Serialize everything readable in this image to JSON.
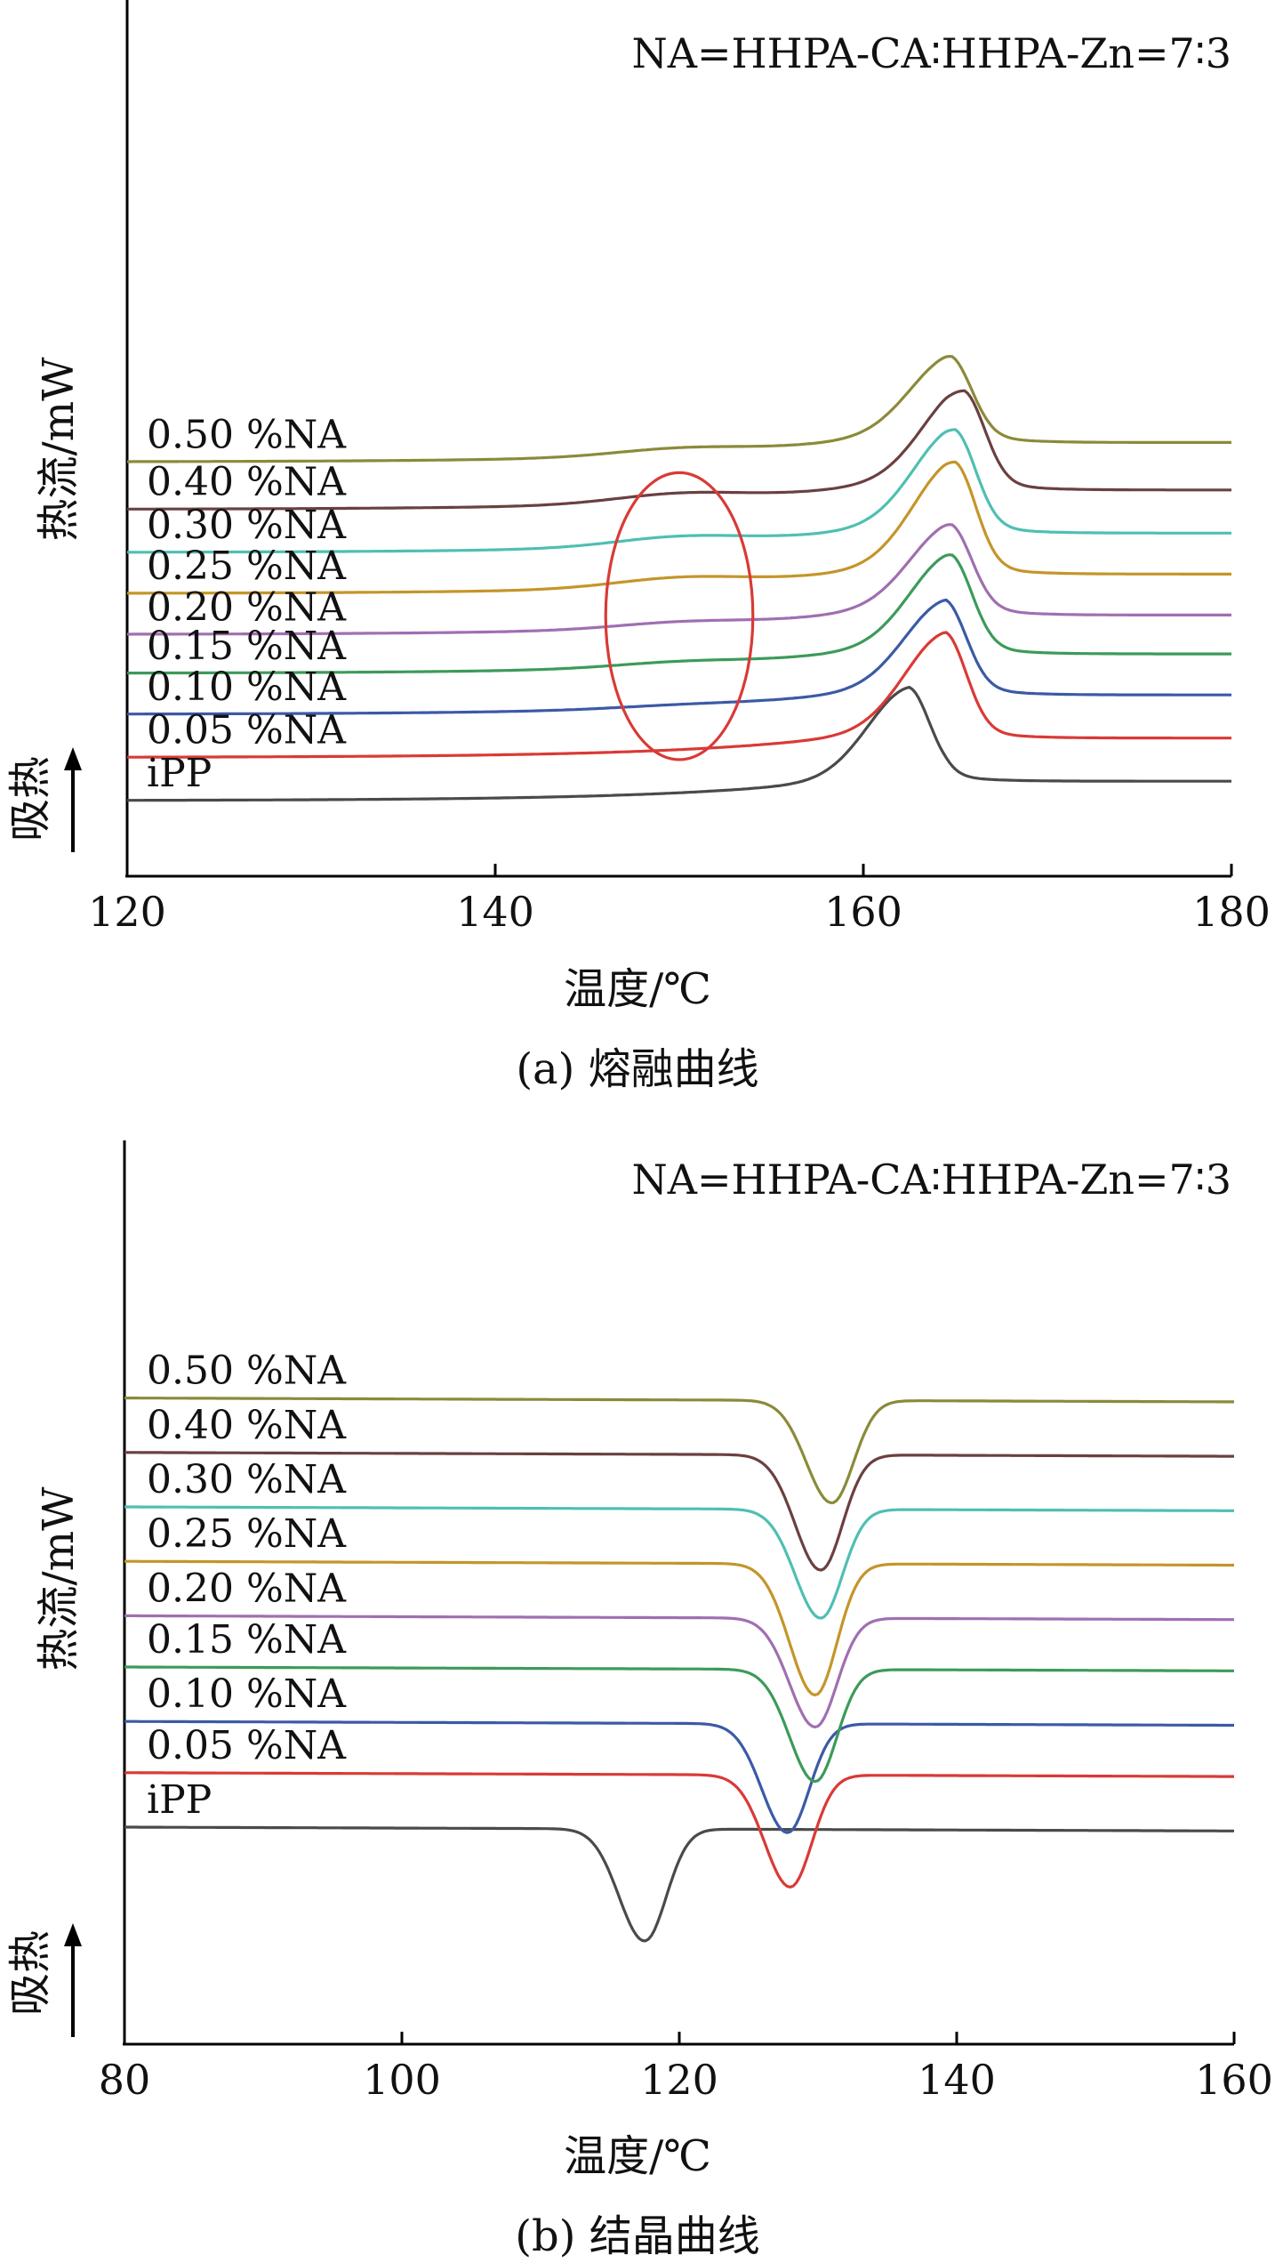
{
  "figure": {
    "panels": [
      {
        "caption": "(a) 熔融曲线",
        "annotation": "NA=HHPA-CA∶HHPA-Zn=7∶3",
        "ylabel": "热流/mW",
        "endo_label": "吸热",
        "xlabel": "温度/℃"
      },
      {
        "caption": "(b) 结晶曲线",
        "annotation": "NA=HHPA-CA∶HHPA-Zn=7∶3",
        "ylabel": "热流/mW",
        "endo_label": "吸热",
        "xlabel": "温度/℃"
      }
    ]
  },
  "chart_data": [
    {
      "type": "line",
      "title": "(a) 熔融曲线",
      "annotation": "NA=HHPA-CA∶HHPA-Zn=7∶3",
      "xlabel": "温度/℃",
      "ylabel": "热流/mW",
      "xlim": [
        120,
        180
      ],
      "xticks": [
        120,
        140,
        160,
        180
      ],
      "grid": false,
      "highlight": {
        "shape": "ellipse",
        "color": "#d93a36",
        "x_center": 150,
        "x_halfwidth": 4
      },
      "series": [
        {
          "name": "iPP",
          "color": "#4a4a4a",
          "baseline": 0.0,
          "peak_x": 162.5,
          "peak_height": 1.9,
          "shoulder": 0
        },
        {
          "name": "0.05 %NA",
          "color": "#d93a36",
          "baseline": 1.0,
          "peak_x": 164.5,
          "peak_height": 2.0,
          "shoulder": 0
        },
        {
          "name": "0.10 %NA",
          "color": "#3b5aa6",
          "baseline": 2.0,
          "peak_x": 164.5,
          "peak_height": 1.75,
          "shoulder": 0.05
        },
        {
          "name": "0.15 %NA",
          "color": "#3d9a5a",
          "baseline": 2.95,
          "peak_x": 164.8,
          "peak_height": 1.85,
          "shoulder": 0.1
        },
        {
          "name": "0.20 %NA",
          "color": "#a06fb0",
          "baseline": 3.85,
          "peak_x": 164.8,
          "peak_height": 1.65,
          "shoulder": 0.12
        },
        {
          "name": "0.25 %NA",
          "color": "#c4952a",
          "baseline": 4.8,
          "peak_x": 165.0,
          "peak_height": 2.15,
          "shoulder": 0.2
        },
        {
          "name": "0.30 %NA",
          "color": "#4fbfb2",
          "baseline": 5.75,
          "peak_x": 165.0,
          "peak_height": 1.95,
          "shoulder": 0.2
        },
        {
          "name": "0.40 %NA",
          "color": "#6b4040",
          "baseline": 6.75,
          "peak_x": 165.5,
          "peak_height": 1.85,
          "shoulder": 0.2
        },
        {
          "name": "0.50 %NA",
          "color": "#8b8a3a",
          "baseline": 7.85,
          "peak_x": 164.8,
          "peak_height": 1.55,
          "shoulder": 0.15
        }
      ]
    },
    {
      "type": "line",
      "title": "(b) 结晶曲线",
      "annotation": "NA=HHPA-CA∶HHPA-Zn=7∶3",
      "xlabel": "温度/℃",
      "ylabel": "热流/mW",
      "xlim": [
        80,
        160
      ],
      "xticks": [
        80,
        100,
        120,
        140,
        160
      ],
      "grid": false,
      "series": [
        {
          "name": "iPP",
          "color": "#4a4a4a",
          "baseline": 0.0,
          "peak_x": 117.5,
          "peak_depth": 1.75
        },
        {
          "name": "0.05 %NA",
          "color": "#d93a36",
          "baseline": 0.85,
          "peak_x": 128.0,
          "peak_depth": 1.75
        },
        {
          "name": "0.10 %NA",
          "color": "#3b5aa6",
          "baseline": 1.65,
          "peak_x": 127.8,
          "peak_depth": 1.7
        },
        {
          "name": "0.15 %NA",
          "color": "#3d9a5a",
          "baseline": 2.5,
          "peak_x": 129.8,
          "peak_depth": 1.75
        },
        {
          "name": "0.20 %NA",
          "color": "#a06fb0",
          "baseline": 3.3,
          "peak_x": 129.8,
          "peak_depth": 1.7
        },
        {
          "name": "0.25 %NA",
          "color": "#c4952a",
          "baseline": 4.15,
          "peak_x": 129.8,
          "peak_depth": 2.05
        },
        {
          "name": "0.30 %NA",
          "color": "#4fbfb2",
          "baseline": 5.0,
          "peak_x": 130.2,
          "peak_depth": 1.7
        },
        {
          "name": "0.40 %NA",
          "color": "#6b4040",
          "baseline": 5.85,
          "peak_x": 130.2,
          "peak_depth": 1.8
        },
        {
          "name": "0.50 %NA",
          "color": "#8b8a3a",
          "baseline": 6.7,
          "peak_x": 131.0,
          "peak_depth": 1.6
        }
      ]
    }
  ]
}
